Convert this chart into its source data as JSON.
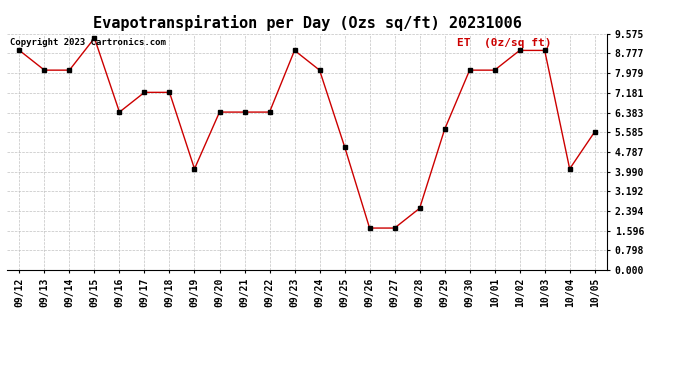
{
  "title": "Evapotranspiration per Day (Ozs sq/ft) 20231006",
  "copyright_text": "Copyright 2023 Cartronics.com",
  "legend_label": "ET  (0z/sq ft)",
  "dates": [
    "09/12",
    "09/13",
    "09/14",
    "09/15",
    "09/16",
    "09/17",
    "09/18",
    "09/19",
    "09/20",
    "09/21",
    "09/22",
    "09/23",
    "09/24",
    "09/25",
    "09/26",
    "09/27",
    "09/28",
    "09/29",
    "09/30",
    "10/01",
    "10/02",
    "10/03",
    "10/04",
    "10/05"
  ],
  "values": [
    8.9,
    8.1,
    8.1,
    9.4,
    6.4,
    7.2,
    7.2,
    4.1,
    6.4,
    6.4,
    6.4,
    8.9,
    8.1,
    5.0,
    1.7,
    1.7,
    2.5,
    5.7,
    8.1,
    8.1,
    8.9,
    8.9,
    4.1,
    5.6
  ],
  "line_color": "#cc0000",
  "marker_color": "#000000",
  "background_color": "#ffffff",
  "grid_color": "#bbbbbb",
  "title_color": "#000000",
  "copyright_color": "#000000",
  "legend_color": "#cc0000",
  "yticks": [
    0.0,
    0.798,
    1.596,
    2.394,
    3.192,
    3.99,
    4.787,
    5.585,
    6.383,
    7.181,
    7.979,
    8.777,
    9.575
  ],
  "ylim": [
    0.0,
    9.575
  ],
  "title_fontsize": 11,
  "axis_fontsize": 7,
  "copyright_fontsize": 6.5,
  "legend_fontsize": 8
}
